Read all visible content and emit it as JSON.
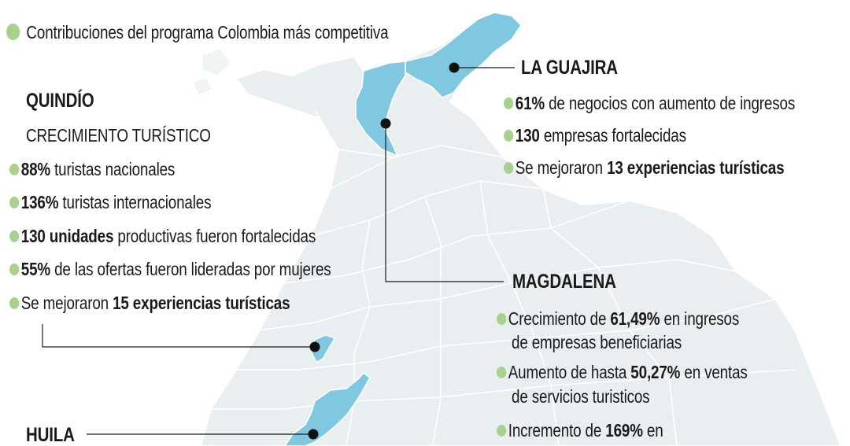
{
  "legend": {
    "label": "Contribuciones del programa Colombia más competitiva",
    "color": "#a9d18e"
  },
  "colors": {
    "highlight_region": "#7fc8e0",
    "base_region": "#e9eff0",
    "border": "#ffffff",
    "bullet": "#a9d18e"
  },
  "quindio": {
    "title": "QUINDÍO",
    "subtitle": "CRECIMIENTO TURÍSTICO",
    "items": [
      {
        "bold": "88%",
        "text": " turistas nacionales"
      },
      {
        "bold": "136%",
        "text": " turistas internacionales"
      },
      {
        "bold": "130 unidades",
        "text": " productivas fueron fortalecidas"
      },
      {
        "bold": "55%",
        "text": " de las ofertas fueron lideradas por mujeres"
      },
      {
        "pre": "Se mejoraron ",
        "bold": "15 experiencias turísticas"
      }
    ]
  },
  "la_guajira": {
    "title": "LA GUAJIRA",
    "items": [
      {
        "bold": "61%",
        "text": " de negocios con aumento de ingresos"
      },
      {
        "bold": "130",
        "text": " empresas fortalecidas"
      },
      {
        "pre": "Se mejoraron ",
        "bold": "13 experiencias turísticas"
      }
    ]
  },
  "magdalena": {
    "title": "MAGDALENA",
    "items": [
      {
        "pre": "Crecimiento de ",
        "bold": "61,49%",
        "text": " en ingresos",
        "line2": "de empresas beneficiarias"
      },
      {
        "pre": "Aumento de hasta ",
        "bold": "50,27%",
        "text": " en ventas",
        "line2": "de servicios turisticos"
      },
      {
        "pre": "Incremento de ",
        "bold": "169%",
        "text": " en"
      }
    ]
  },
  "huila": {
    "title": "HUILA"
  }
}
